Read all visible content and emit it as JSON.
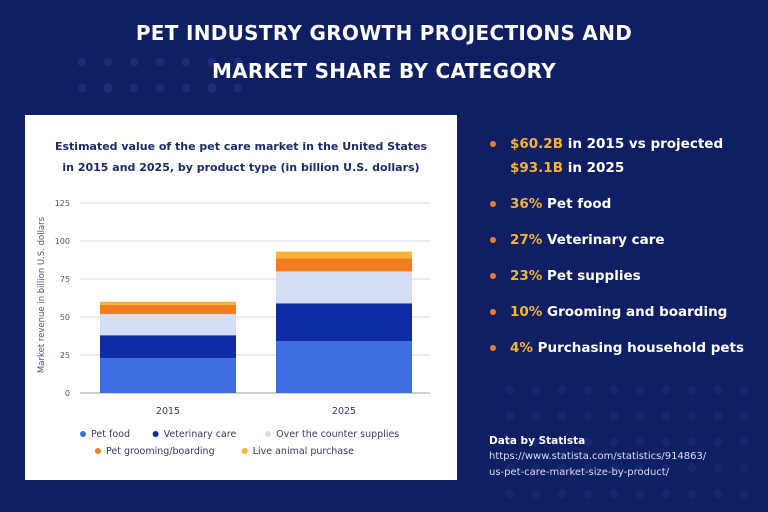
{
  "title_lines": [
    "PET INDUSTRY GROWTH PROJECTIONS AND",
    "MARKET SHARE BY CATEGORY"
  ],
  "colors": {
    "background": "#0f1f63",
    "accent_orange": "#f47c20",
    "accent_yellow": "#f9b233"
  },
  "highlights": [
    {
      "value": "$60.2B",
      "text": " in 2015 vs projected ",
      "value2": "$93.1B",
      "text2": " in 2025"
    },
    {
      "value": "36%",
      "text": " Pet food"
    },
    {
      "value": "27%",
      "text": " Veterinary care"
    },
    {
      "value": "23%",
      "text": " Pet supplies"
    },
    {
      "value": "10%",
      "text": " Grooming and boarding"
    },
    {
      "value": "4%",
      "text": " Purchasing household pets"
    }
  ],
  "source": {
    "title": "Data by Statista",
    "url_line1": "https://www.statista.com/statistics/914863/",
    "url_line2": "us-pet-care-market-size-by-product/"
  },
  "chart_data": {
    "type": "bar",
    "stacked": true,
    "title": "Estimated value of the pet care market in the United States in 2015 and 2025, by product type (in billion U.S. dollars)",
    "title_lines": [
      "Estimated value of the pet care market in the United States",
      "in 2015 and 2025, by product type (in billion U.S. dollars)"
    ],
    "xlabel": "",
    "ylabel": "Market revenue in billion U.S. dollars",
    "ylim": [
      0,
      125
    ],
    "yticks": [
      0,
      25,
      50,
      75,
      100,
      125
    ],
    "grid": true,
    "legend_position": "bottom",
    "categories": [
      "2015",
      "2025"
    ],
    "series": [
      {
        "name": "Pet food",
        "color": "#3f6ee0",
        "values": [
          23,
          34
        ]
      },
      {
        "name": "Veterinary care",
        "color": "#0d2ca6",
        "values": [
          15,
          25
        ]
      },
      {
        "name": "Over the counter supplies",
        "color": "#d3def5",
        "values": [
          14,
          21
        ]
      },
      {
        "name": "Pet grooming/boarding",
        "color": "#f47c20",
        "values": [
          6,
          8.5
        ]
      },
      {
        "name": "Live animal purchase",
        "color": "#f9b233",
        "values": [
          2,
          4.5
        ]
      }
    ]
  }
}
